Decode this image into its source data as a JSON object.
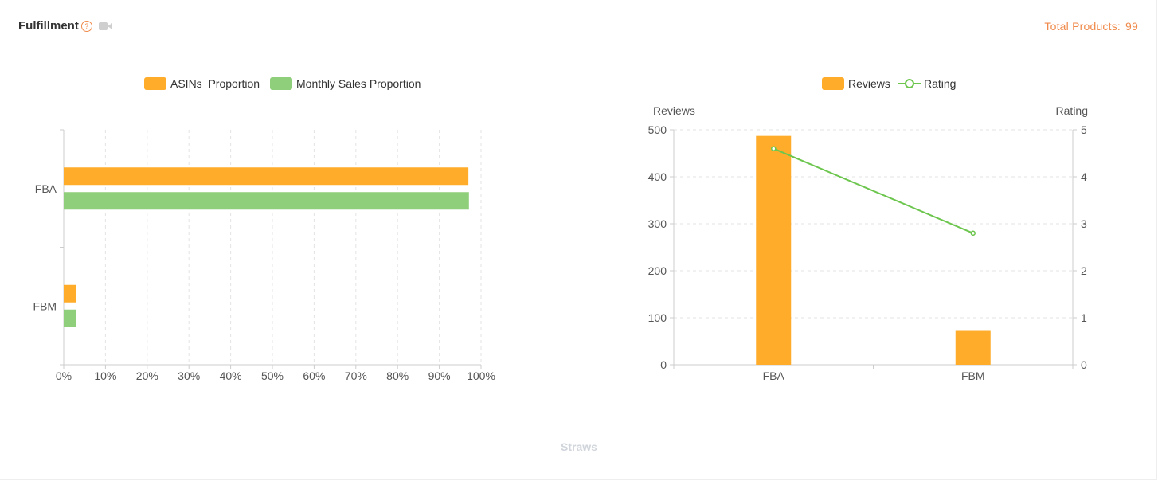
{
  "header": {
    "title": "Fulfillment",
    "help_icon": "question-circle-icon",
    "video_icon": "video-icon",
    "total_label": "Total Products:",
    "total_value": "99"
  },
  "colors": {
    "orange": "#ffac2b",
    "green": "#8fce7a",
    "rating_line": "#6cc64e",
    "accent": "#f08a4b"
  },
  "footer": {
    "text": "Straws"
  },
  "chart_data": [
    {
      "type": "bar",
      "orientation": "horizontal",
      "categories": [
        "FBA",
        "FBM"
      ],
      "series": [
        {
          "name": "ASINs  Proportion",
          "values": [
            96.97,
            3.03
          ]
        },
        {
          "name": "Monthly Sales Proportion",
          "values": [
            97.1,
            2.9
          ]
        }
      ],
      "xlim": [
        0,
        100
      ],
      "xticks": [
        "0%",
        "10%",
        "20%",
        "30%",
        "40%",
        "50%",
        "60%",
        "70%",
        "80%",
        "90%",
        "100%"
      ],
      "grid": true,
      "legend": "top-center"
    },
    {
      "type": "bar",
      "categories": [
        "FBA",
        "FBM"
      ],
      "series": [
        {
          "name": "Reviews",
          "type": "bar",
          "axis": "left",
          "values": [
            487,
            72
          ]
        },
        {
          "name": "Rating",
          "type": "line",
          "axis": "right",
          "values": [
            4.6,
            2.8
          ]
        }
      ],
      "ylabel": "Reviews",
      "y2label": "Rating",
      "ylim": [
        0,
        500
      ],
      "y2lim": [
        0,
        5
      ],
      "yticks": [
        "0",
        "100",
        "200",
        "300",
        "400",
        "500"
      ],
      "y2ticks": [
        "0",
        "1",
        "2",
        "3",
        "4",
        "5"
      ],
      "grid": true,
      "legend": "top-center"
    }
  ]
}
